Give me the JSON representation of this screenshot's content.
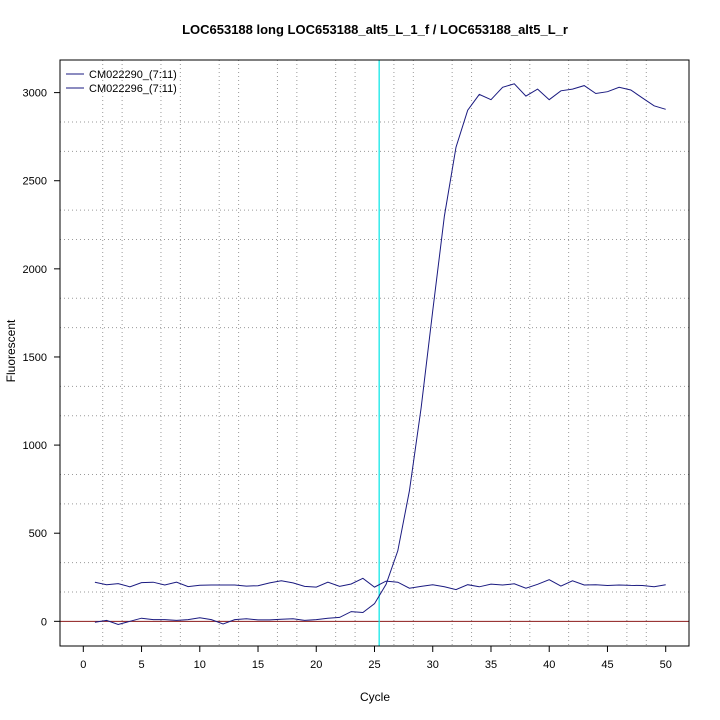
{
  "chart_data": {
    "type": "line",
    "title": "LOC653188 long LOC653188_alt5_L_1_f / LOC653188_alt5_L_r",
    "xlabel": "Cycle",
    "ylabel": "Fluorescent",
    "xlim": [
      -2,
      52
    ],
    "ylim": [
      -140,
      3185
    ],
    "x_ticks": [
      0,
      5,
      10,
      15,
      20,
      25,
      30,
      35,
      40,
      45,
      50
    ],
    "y_ticks": [
      0,
      500,
      1000,
      1500,
      2000,
      2500,
      3000
    ],
    "legend_position": "top-left",
    "grid": true,
    "threshold_line": {
      "axis": "x",
      "value": 25.4,
      "color": "#00e5e5"
    },
    "baseline": {
      "axis": "y",
      "value": 0,
      "color": "#8b1a1a"
    },
    "series": [
      {
        "name": "CM022290_(7:11)",
        "color": "#1a1a80",
        "x": [
          1,
          2,
          3,
          4,
          5,
          6,
          7,
          8,
          9,
          10,
          11,
          12,
          13,
          14,
          15,
          16,
          17,
          18,
          19,
          20,
          21,
          22,
          23,
          24,
          25,
          26,
          27,
          28,
          29,
          30,
          31,
          32,
          33,
          34,
          35,
          36,
          37,
          38,
          39,
          40,
          41,
          42,
          43,
          44,
          45,
          46,
          47,
          48,
          49,
          50
        ],
        "values": [
          -5,
          5,
          -18,
          0,
          18,
          10,
          10,
          5,
          10,
          20,
          10,
          -15,
          10,
          15,
          8,
          8,
          12,
          15,
          5,
          10,
          18,
          22,
          55,
          50,
          100,
          210,
          400,
          740,
          1210,
          1760,
          2300,
          2690,
          2900,
          2990,
          2960,
          3030,
          3050,
          2980,
          3020,
          2960,
          3010,
          3020,
          3040,
          2995,
          3005,
          3030,
          3015,
          2970,
          2925,
          2905
        ]
      },
      {
        "name": "CM022296_(7:11)",
        "color": "#1a1a80",
        "x": [
          1,
          2,
          3,
          4,
          5,
          6,
          7,
          8,
          9,
          10,
          11,
          12,
          13,
          14,
          15,
          16,
          17,
          18,
          19,
          20,
          21,
          22,
          23,
          24,
          25,
          26,
          27,
          28,
          29,
          30,
          31,
          32,
          33,
          34,
          35,
          36,
          37,
          38,
          39,
          40,
          41,
          42,
          43,
          44,
          45,
          46,
          47,
          48,
          49,
          50
        ],
        "values": [
          222,
          208,
          214,
          196,
          220,
          222,
          206,
          222,
          197,
          205,
          206,
          206,
          206,
          200,
          202,
          218,
          230,
          218,
          198,
          194,
          222,
          198,
          212,
          244,
          194,
          228,
          222,
          188,
          198,
          208,
          196,
          180,
          208,
          196,
          211,
          206,
          213,
          188,
          210,
          236,
          200,
          230,
          206,
          208,
          203,
          206,
          204,
          203,
          196,
          208
        ]
      }
    ]
  }
}
